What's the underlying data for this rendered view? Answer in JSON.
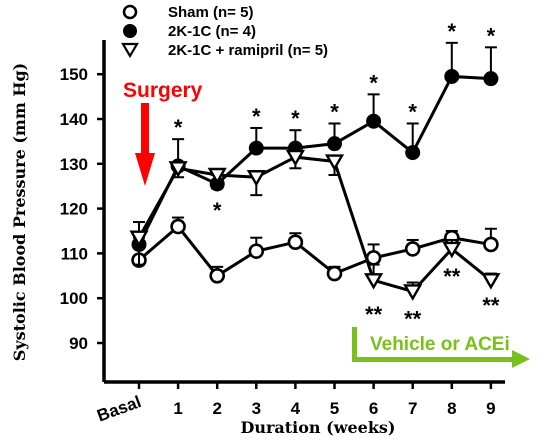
{
  "colors": {
    "surgery": "#ff0000",
    "treatment": "#7ac01c",
    "axis": "#000000"
  },
  "chart_data": {
    "type": "line",
    "xlabel": "Duration (weeks)",
    "ylabel": "Systolic Blood Pressure (mm Hg)",
    "categories": [
      "Basal",
      "1",
      "2",
      "3",
      "4",
      "5",
      "6",
      "7",
      "8",
      "9"
    ],
    "yticks": [
      90,
      100,
      110,
      120,
      130,
      140,
      150
    ],
    "ylim": [
      85,
      160
    ],
    "series": [
      {
        "name": "Sham (n= 5)",
        "marker": "open-circle",
        "values": [
          108.5,
          116,
          105,
          110.5,
          112.5,
          105.5,
          109,
          111,
          113.5,
          112
        ],
        "errors": [
          5,
          2,
          2,
          3,
          2,
          1.5,
          3,
          2,
          1.5,
          3.5
        ]
      },
      {
        "name": "2K-1C (n= 4)",
        "marker": "filled-circle",
        "values": [
          112,
          129.5,
          125.5,
          133.5,
          133.5,
          134.5,
          139.5,
          132.5,
          149.5,
          149
        ],
        "errors": [
          5,
          6,
          2,
          4.5,
          4,
          4.5,
          6,
          6.5,
          7.5,
          7
        ]
      },
      {
        "name": "2K-1C + ramipril (n= 5)",
        "marker": "open-triangle-down",
        "values": [
          113.5,
          129,
          127.5,
          127,
          131.5,
          130.5,
          104,
          101.5,
          111,
          104
        ],
        "errors": [
          6,
          2,
          3,
          4,
          2.5,
          3,
          3.5,
          2,
          2,
          1.5
        ]
      }
    ],
    "significance": [
      {
        "x": "1",
        "label": "*",
        "position": "above"
      },
      {
        "x": "2",
        "label": "*",
        "position": "below"
      },
      {
        "x": "3",
        "label": "*",
        "position": "above"
      },
      {
        "x": "4",
        "label": "*",
        "position": "above"
      },
      {
        "x": "5",
        "label": "*",
        "position": "above"
      },
      {
        "x": "6",
        "label": "*",
        "position": "above"
      },
      {
        "x": "7",
        "label": "*",
        "position": "above"
      },
      {
        "x": "8",
        "label": "*",
        "position": "above"
      },
      {
        "x": "9",
        "label": "*",
        "position": "above"
      },
      {
        "x": "6",
        "label": "**",
        "position": "below"
      },
      {
        "x": "7",
        "label": "**",
        "position": "below"
      },
      {
        "x": "8",
        "label": "**",
        "position": "below"
      },
      {
        "x": "9",
        "label": "**",
        "position": "below"
      }
    ],
    "annotations": {
      "surgery": "Surgery",
      "treatment": "Vehicle or ACEi"
    }
  }
}
